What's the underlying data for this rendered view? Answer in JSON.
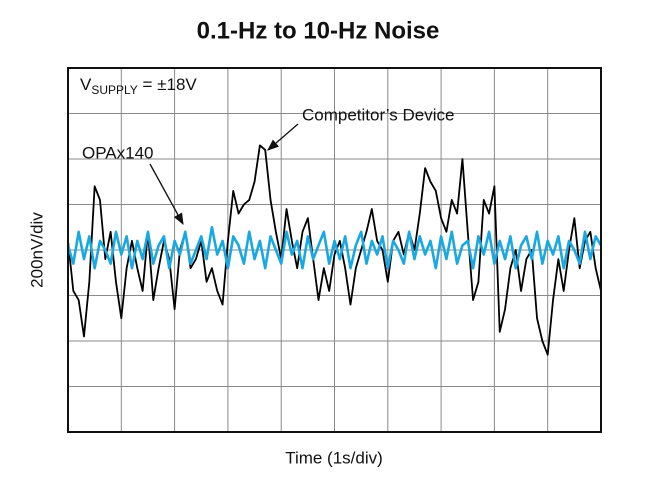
{
  "chart_data": {
    "type": "line",
    "title": "0.1-Hz to 10-Hz Noise",
    "x_label": "Time (1s/div)",
    "y_label": "200nV/div",
    "annotation": {
      "text": "V",
      "subscript": "SUPPLY",
      "suffix": " = ±18V"
    },
    "xlim": [
      0,
      10
    ],
    "ylim": [
      -4,
      4
    ],
    "xticks": [
      0,
      1,
      2,
      3,
      4,
      5,
      6,
      7,
      8,
      9,
      10
    ],
    "yticks": [
      -4,
      -3,
      -2,
      -1,
      0,
      1,
      2,
      3,
      4
    ],
    "grid": true,
    "x": [
      0,
      0.1,
      0.2,
      0.3,
      0.4,
      0.5,
      0.6,
      0.7,
      0.8,
      0.9,
      1,
      1.1,
      1.2,
      1.3,
      1.4,
      1.5,
      1.6,
      1.7,
      1.8,
      1.9,
      2,
      2.1,
      2.2,
      2.3,
      2.4,
      2.5,
      2.6,
      2.7,
      2.8,
      2.9,
      3,
      3.1,
      3.2,
      3.3,
      3.4,
      3.5,
      3.6,
      3.7,
      3.8,
      3.9,
      4,
      4.1,
      4.2,
      4.3,
      4.4,
      4.5,
      4.6,
      4.7,
      4.8,
      4.9,
      5,
      5.1,
      5.2,
      5.3,
      5.4,
      5.5,
      5.6,
      5.7,
      5.8,
      5.9,
      6,
      6.1,
      6.2,
      6.3,
      6.4,
      6.5,
      6.6,
      6.7,
      6.8,
      6.9,
      7,
      7.1,
      7.2,
      7.3,
      7.4,
      7.5,
      7.6,
      7.7,
      7.8,
      7.9,
      8,
      8.1,
      8.2,
      8.3,
      8.4,
      8.5,
      8.6,
      8.7,
      8.8,
      8.9,
      9,
      9.1,
      9.2,
      9.3,
      9.4,
      9.5,
      9.6,
      9.7,
      9.8,
      9.9,
      10
    ],
    "series": [
      {
        "name": "Competitor’s Device",
        "color": "#000000",
        "values": [
          0.2,
          -0.9,
          -1.1,
          -1.9,
          -0.7,
          1.4,
          1.1,
          -0.2,
          0.4,
          -0.7,
          -1.5,
          -0.4,
          0.2,
          -0.4,
          -0.9,
          0.4,
          -1.1,
          -0.4,
          0.2,
          -0.2,
          -1.3,
          0,
          0.4,
          -0.4,
          -0.2,
          0.2,
          -0.7,
          -0.4,
          -0.9,
          -1.2,
          0.2,
          1.3,
          0.8,
          1.0,
          1.1,
          1.5,
          2.3,
          2.2,
          1.1,
          0.4,
          -0.2,
          0.9,
          0.2,
          -0.4,
          0.4,
          0.7,
          -0.2,
          -1.1,
          -0.4,
          -0.9,
          -0.1,
          0.2,
          -0.4,
          -1.2,
          -0.4,
          0,
          0.4,
          0.9,
          0.2,
          0,
          -0.7,
          0.2,
          0.4,
          -0.1,
          0.4,
          0,
          0.8,
          1.8,
          1.5,
          1.3,
          0.7,
          0.4,
          1.1,
          0.8,
          2.0,
          0.4,
          -1.1,
          -0.7,
          1.1,
          0.8,
          1.4,
          -1.8,
          -1.3,
          -0.4,
          0,
          -0.9,
          -0.2,
          0,
          -1.5,
          -2.0,
          -2.3,
          -1.1,
          -0.2,
          -0.9,
          0,
          0.7,
          -0.4,
          0.2,
          0.4,
          -0.4,
          -0.9
        ]
      },
      {
        "name": "OPAx140",
        "color": "#1aa8e0",
        "values": [
          0.1,
          -0.3,
          0.4,
          -0.2,
          0.3,
          -0.4,
          0.2,
          0.0,
          -0.3,
          0.4,
          -0.1,
          0.3,
          -0.4,
          0.2,
          -0.2,
          0.4,
          -0.3,
          0.1,
          0.3,
          -0.4,
          0.2,
          -0.1,
          0.4,
          -0.3,
          0.0,
          0.3,
          -0.2,
          0.5,
          -0.1,
          0.2,
          -0.4,
          0.3,
          0.1,
          -0.3,
          0.4,
          -0.2,
          0.2,
          -0.4,
          0.3,
          0.0,
          -0.3,
          0.4,
          -0.1,
          0.2,
          -0.4,
          0.3,
          -0.2,
          0.1,
          0.4,
          -0.3,
          0.2,
          -0.2,
          0.3,
          -0.4,
          0.1,
          0.4,
          -0.3,
          0.2,
          -0.1,
          0.3,
          -0.4,
          0.2,
          0.0,
          -0.3,
          0.4,
          -0.2,
          0.3,
          -0.1,
          0.2,
          -0.4,
          0.3,
          -0.2,
          0.4,
          -0.3,
          0.1,
          0.2,
          -0.4,
          0.3,
          -0.1,
          0.4,
          -0.3,
          0.2,
          -0.2,
          0.3,
          -0.4,
          0.1,
          0.3,
          -0.2,
          0.4,
          -0.3,
          0.2,
          -0.1,
          0.3,
          -0.4,
          0.2,
          0.0,
          -0.3,
          0.4,
          -0.2,
          0.3,
          0.1
        ]
      }
    ]
  }
}
